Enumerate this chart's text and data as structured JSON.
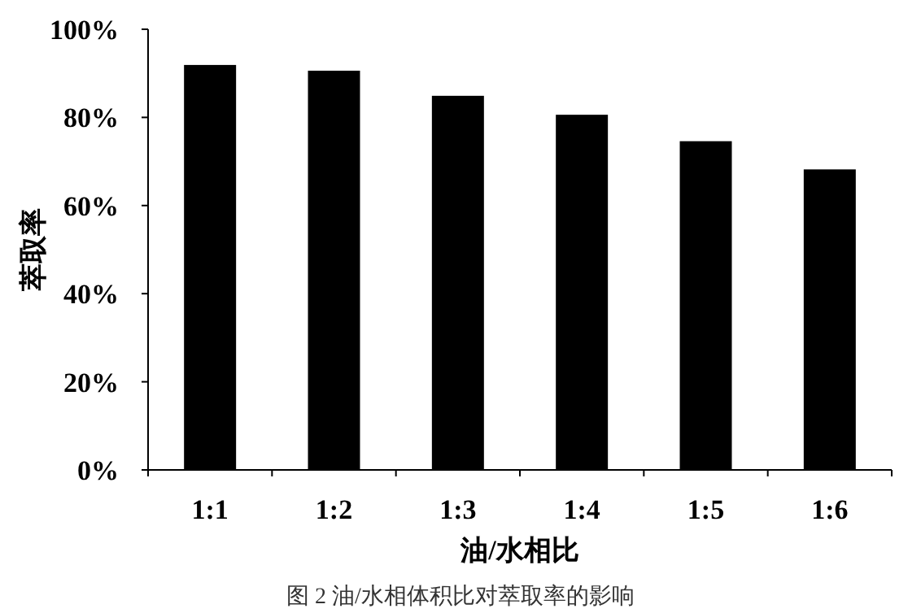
{
  "chart_data": {
    "type": "bar",
    "xlabel": "油/水相比",
    "ylabel": "萃取率",
    "categories": [
      "1:1",
      "1:2",
      "1:3",
      "1:4",
      "1:5",
      "1:6"
    ],
    "values": [
      91.9,
      90.6,
      84.9,
      80.6,
      74.6,
      68.2
    ],
    "color": "#000000",
    "ylim": [
      0,
      100
    ],
    "yticks": [
      {
        "value": 0,
        "label": "0%"
      },
      {
        "value": 20,
        "label": "20%"
      },
      {
        "value": 40,
        "label": "40%"
      },
      {
        "value": 60,
        "label": "60%"
      },
      {
        "value": 80,
        "label": "80%"
      },
      {
        "value": 100,
        "label": "100%"
      }
    ],
    "annotations": [
      "图 2  油/水相体积比对萃取率的影响"
    ]
  }
}
